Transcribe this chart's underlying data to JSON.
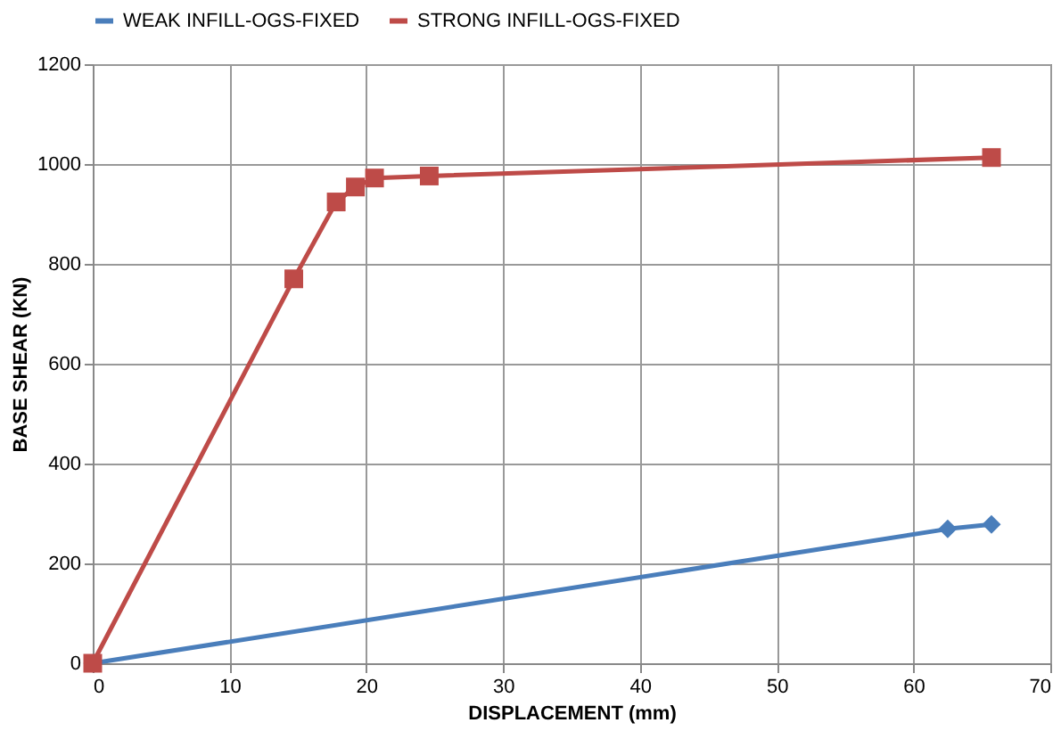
{
  "chart_data": {
    "type": "line",
    "xlabel": "DISPLACEMENT (mm)",
    "ylabel": "BASE SHEAR (KN)",
    "xlim": [
      0,
      70
    ],
    "xticks": [
      0,
      10,
      20,
      30,
      40,
      50,
      60,
      70
    ],
    "ylim": [
      0,
      1200
    ],
    "yticks": [
      0,
      200,
      400,
      600,
      800,
      1000,
      1200
    ],
    "grid": true,
    "legend": "top",
    "series": [
      {
        "name": "WEAK INFILL-OGS-FIXED",
        "color": "#4a7ebb",
        "marker": "diamond",
        "x": [
          0,
          62.5,
          65.7
        ],
        "values": [
          0,
          269,
          278
        ]
      },
      {
        "name": "STRONG INFILL-OGS-FIXED",
        "color": "#be4b48",
        "marker": "square",
        "x": [
          0,
          14.7,
          17.8,
          19.2,
          20.6,
          24.6,
          65.7
        ],
        "values": [
          0,
          770,
          924,
          954,
          972,
          976,
          1013
        ]
      }
    ]
  }
}
